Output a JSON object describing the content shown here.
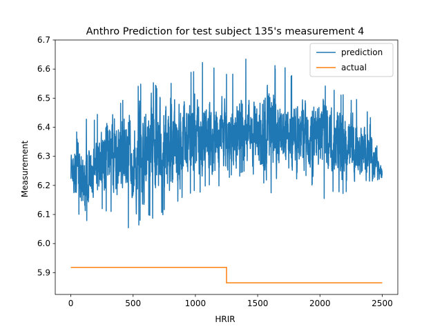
{
  "chart_data": {
    "type": "line",
    "title": "Anthro Prediction for test subject 135's measurement 4",
    "xlabel": "HRIR",
    "ylabel": "Measurement",
    "xlim": [
      -125,
      2625
    ],
    "ylim": [
      5.825,
      6.7
    ],
    "xticks": [
      0,
      500,
      1000,
      1500,
      2000,
      2500
    ],
    "yticks": [
      5.9,
      6.0,
      6.1,
      6.2,
      6.3,
      6.4,
      6.5,
      6.6,
      6.7
    ],
    "xtick_labels": [
      "0",
      "500",
      "1000",
      "1500",
      "2000",
      "2500"
    ],
    "ytick_labels": [
      "5.9",
      "6.0",
      "6.1",
      "6.2",
      "6.3",
      "6.4",
      "6.5",
      "6.6",
      "6.7"
    ],
    "grid": false,
    "legend_position": "top-right",
    "series": [
      {
        "name": "prediction",
        "color": "#1f77b4",
        "envelope": {
          "x": [
            0,
            100,
            200,
            300,
            400,
            500,
            600,
            700,
            800,
            900,
            1000,
            1100,
            1200,
            1300,
            1400,
            1500,
            1600,
            1700,
            1800,
            1900,
            2000,
            2100,
            2200,
            2300,
            2400,
            2500
          ],
          "center": [
            6.26,
            6.24,
            6.26,
            6.31,
            6.29,
            6.3,
            6.31,
            6.33,
            6.34,
            6.35,
            6.36,
            6.37,
            6.38,
            6.37,
            6.38,
            6.4,
            6.39,
            6.38,
            6.37,
            6.37,
            6.36,
            6.35,
            6.34,
            6.32,
            6.31,
            6.24
          ],
          "min": [
            6.18,
            6.04,
            6.14,
            6.1,
            6.06,
            6.03,
            6.09,
            6.08,
            6.12,
            6.16,
            6.17,
            6.18,
            6.2,
            6.22,
            6.23,
            6.24,
            6.15,
            6.22,
            6.2,
            6.22,
            6.13,
            6.18,
            6.16,
            6.18,
            6.17,
            6.21
          ],
          "max": [
            6.35,
            6.43,
            6.43,
            6.57,
            6.5,
            6.52,
            6.58,
            6.54,
            6.56,
            6.55,
            6.62,
            6.65,
            6.58,
            6.6,
            6.64,
            6.6,
            6.62,
            6.62,
            6.57,
            6.59,
            6.54,
            6.55,
            6.52,
            6.5,
            6.45,
            6.28
          ],
          "samples": 2500
        }
      },
      {
        "name": "actual",
        "color": "#ff7f0e",
        "x": [
          0,
          1250,
          1250,
          2500
        ],
        "y": [
          5.918,
          5.918,
          5.865,
          5.865
        ]
      }
    ]
  }
}
